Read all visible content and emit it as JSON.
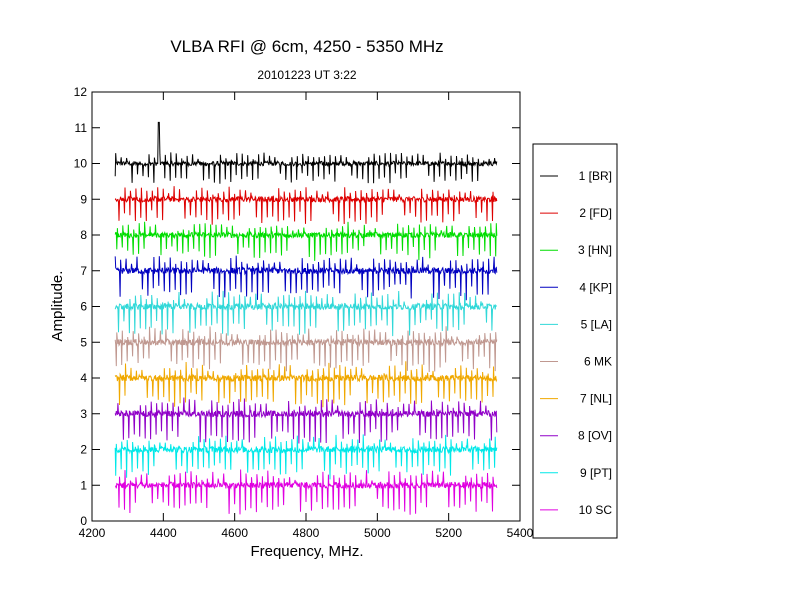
{
  "chart_data": {
    "type": "line",
    "title": "VLBA RFI @ 6cm, 4250 - 5350 MHz",
    "subtitle": "20101223   UT 3:22",
    "xlabel": "Frequency, MHz.",
    "ylabel": "Amplitude.",
    "xlim": [
      4200,
      5400
    ],
    "ylim": [
      0,
      12
    ],
    "xticks": [
      4200,
      4400,
      4600,
      4800,
      5000,
      5200,
      5400
    ],
    "yticks": [
      0,
      1,
      2,
      3,
      4,
      5,
      6,
      7,
      8,
      9,
      10,
      11,
      12
    ],
    "x_range": [
      4265,
      5335
    ],
    "legend_position": "right",
    "series": [
      {
        "name": "1 [BR]",
        "color": "#000000",
        "baseline": 10.0,
        "spread": 0.25,
        "peak": {
          "x": 4387,
          "y": 11.15
        }
      },
      {
        "name": "2 [FD]",
        "color": "#dd0000",
        "baseline": 9.0,
        "spread": 0.3
      },
      {
        "name": "3 [HN]",
        "color": "#00dd00",
        "baseline": 8.0,
        "spread": 0.3
      },
      {
        "name": "4 [KP]",
        "color": "#0000c0",
        "baseline": 7.0,
        "spread": 0.35
      },
      {
        "name": "5 [LA]",
        "color": "#30d8d8",
        "baseline": 6.0,
        "spread": 0.35
      },
      {
        "name": "6 MK",
        "color": "#c09890",
        "baseline": 5.0,
        "spread": 0.35
      },
      {
        "name": "7 [NL]",
        "color": "#f0a800",
        "baseline": 4.0,
        "spread": 0.35
      },
      {
        "name": "8 [OV]",
        "color": "#9000c8",
        "baseline": 3.0,
        "spread": 0.35
      },
      {
        "name": "9 [PT]",
        "color": "#00e8e8",
        "baseline": 2.0,
        "spread": 0.35
      },
      {
        "name": "10 SC",
        "color": "#e000e0",
        "baseline": 1.0,
        "spread": 0.35
      }
    ]
  }
}
